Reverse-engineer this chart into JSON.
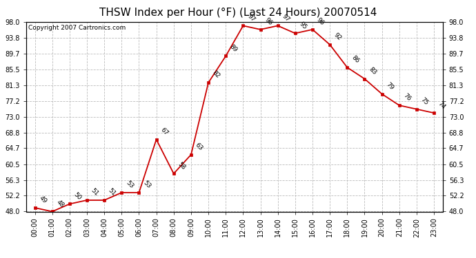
{
  "title": "THSW Index per Hour (°F) (Last 24 Hours) 20070514",
  "copyright": "Copyright 2007 Cartronics.com",
  "hours": [
    0,
    1,
    2,
    3,
    4,
    5,
    6,
    7,
    8,
    9,
    10,
    11,
    12,
    13,
    14,
    15,
    16,
    17,
    18,
    19,
    20,
    21,
    22,
    23
  ],
  "values": [
    49,
    48,
    50,
    51,
    51,
    53,
    53,
    67,
    58,
    63,
    82,
    89,
    97,
    96,
    97,
    95,
    96,
    92,
    86,
    83,
    79,
    76,
    75,
    74
  ],
  "yticks": [
    48.0,
    52.2,
    56.3,
    60.5,
    64.7,
    68.8,
    73.0,
    77.2,
    81.3,
    85.5,
    89.7,
    93.8,
    98.0
  ],
  "ylim": [
    48.0,
    98.0
  ],
  "line_color": "#cc0000",
  "marker_color": "#cc0000",
  "grid_color": "#bbbbbb",
  "bg_color": "#ffffff",
  "title_fontsize": 11,
  "copyright_fontsize": 6.5,
  "label_fontsize": 6.5,
  "tick_fontsize": 7
}
